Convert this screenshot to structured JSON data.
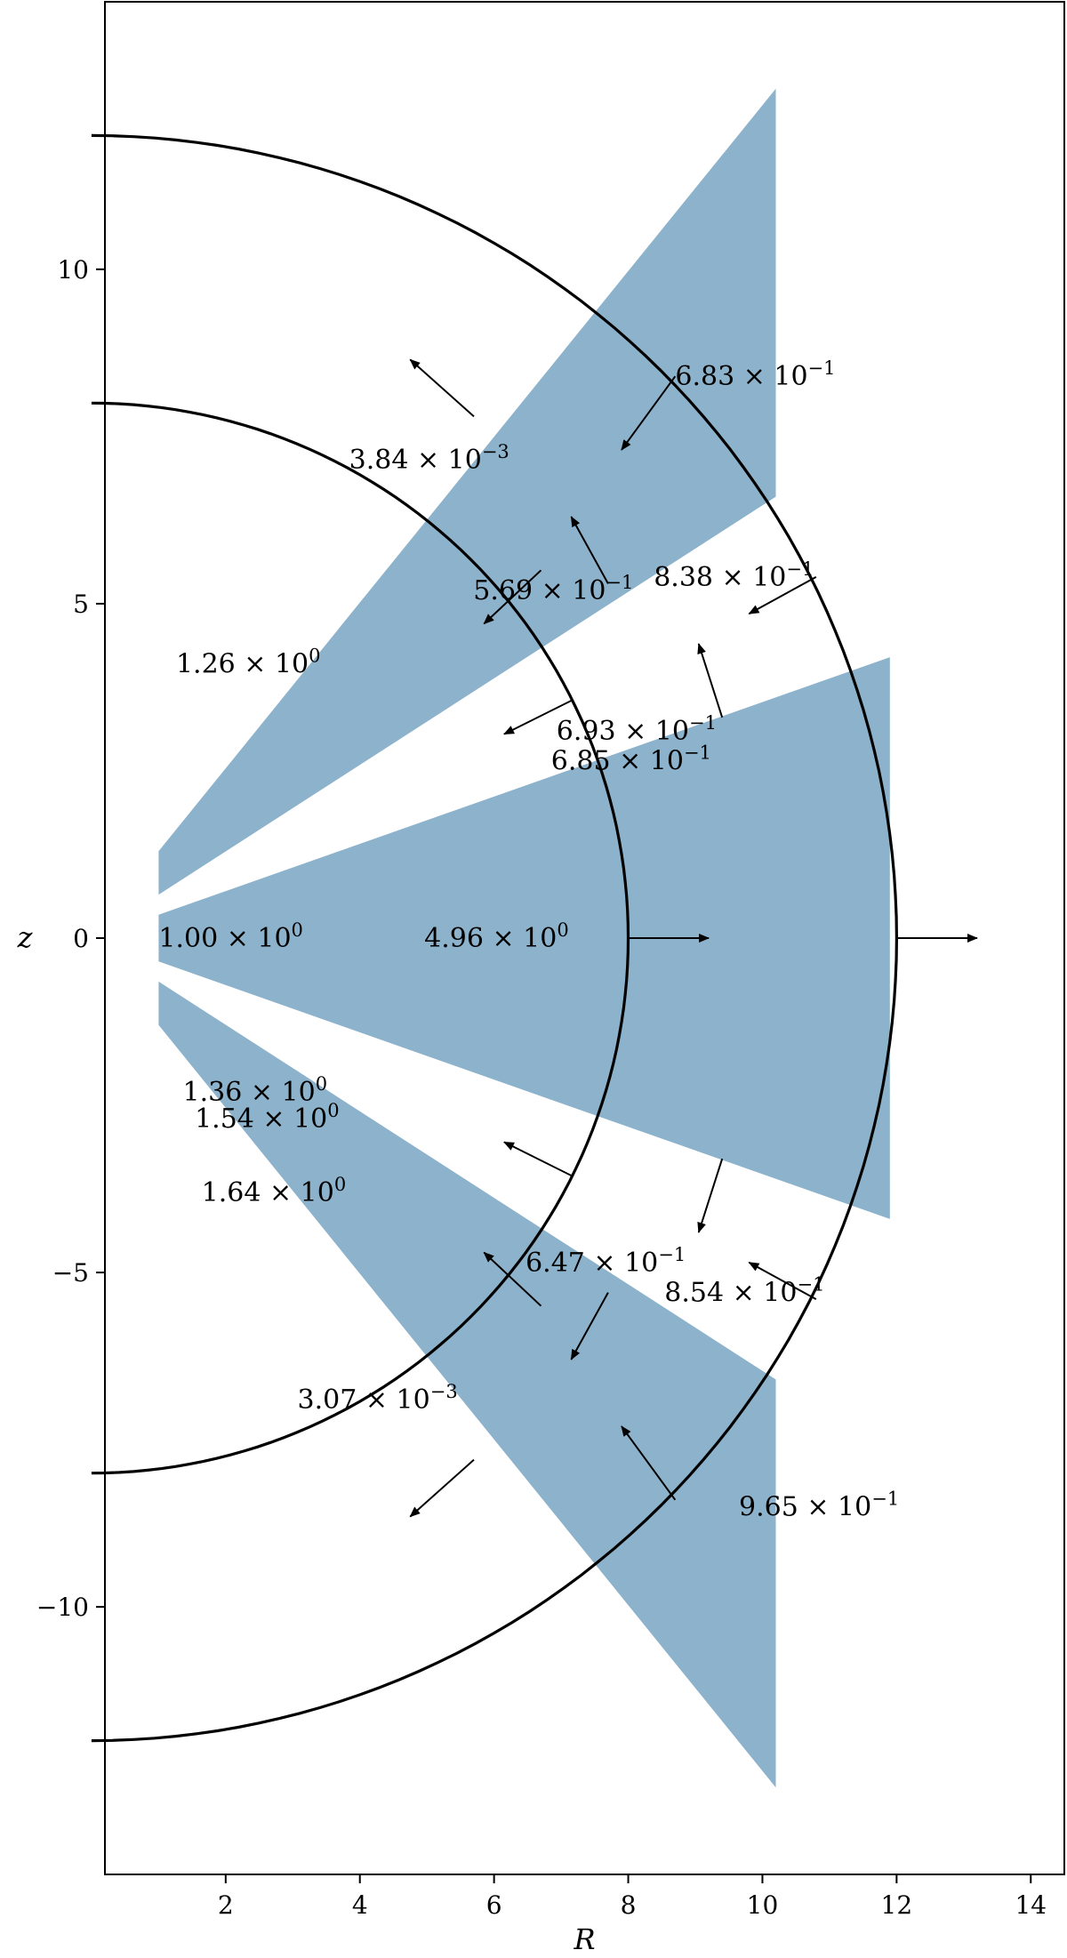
{
  "chart_data": {
    "type": "diagram-plot",
    "xlabel": "R",
    "ylabel": "z",
    "xlim": [
      0.2,
      14.5
    ],
    "ylim": [
      -14,
      14
    ],
    "xticks": [
      2,
      4,
      6,
      8,
      10,
      12,
      14
    ],
    "yticks": [
      -10,
      -5,
      0,
      5,
      10
    ],
    "ytick_labels": [
      "−10",
      "−5",
      "0",
      "5",
      "10"
    ],
    "fill_color": "#8cb2cc",
    "regions": [
      {
        "points": [
          [
            1.0,
            1.3
          ],
          [
            10.2,
            12.7
          ],
          [
            10.2,
            6.6
          ],
          [
            1.0,
            0.65
          ]
        ]
      },
      {
        "points": [
          [
            1.0,
            0.35
          ],
          [
            11.9,
            4.2
          ],
          [
            11.9,
            -4.2
          ],
          [
            1.0,
            -0.35
          ]
        ]
      },
      {
        "points": [
          [
            1.0,
            -0.65
          ],
          [
            10.2,
            -6.6
          ],
          [
            10.2,
            -12.7
          ],
          [
            1.0,
            -1.3
          ]
        ]
      }
    ],
    "arcs": [
      {
        "radius": 8,
        "z_range": [
          -8,
          8
        ]
      },
      {
        "radius": 12,
        "z_range": [
          -12,
          12
        ]
      }
    ],
    "arrows": [
      {
        "from": [
          6.65,
          9.0
        ],
        "to": [
          9.2,
          4.6
        ],
        "label": ""
      },
      {
        "from": [
          5.4,
          9.0
        ],
        "to": [
          6.3,
          5.1
        ],
        "label": ""
      },
      {
        "from": [
          4.65,
          7.3
        ],
        "to": [
          7.9,
          7.9
        ],
        "label": ""
      },
      {
        "from": [
          3.5,
          6.15
        ],
        "to": [
          2.85,
          5.2
        ],
        "label": ""
      }
    ],
    "annotations": [
      {
        "x": 8.7,
        "y": 8.4,
        "text": "6.83 × 10",
        "exp": "−1",
        "ax": 8.7,
        "ay": 8.4,
        "dx": -0.8,
        "dy": -1.1
      },
      {
        "x": 3.84,
        "y": 7.15,
        "text": "3.84 × 10",
        "exp": "−3",
        "ax": 5.7,
        "ay": 7.8,
        "dx": -0.95,
        "dy": 0.85
      },
      {
        "x": 5.69,
        "y": 5.2,
        "text": "5.69 × 10",
        "exp": "−1",
        "ax": 7.7,
        "ay": 5.3,
        "dx": -0.55,
        "dy": 1.0
      },
      {
        "x": 8.38,
        "y": 5.4,
        "text": "8.38 × 10",
        "exp": "−1",
        "ax": 10.8,
        "ay": 5.4,
        "dx": -1.0,
        "dy": -0.55
      },
      {
        "x": 1.26,
        "y": 4.1,
        "text": "1.26 × 10",
        "exp": "0",
        "ax": 6.7,
        "ay": 5.5,
        "dx": -0.85,
        "dy": -0.8
      },
      {
        "x": 6.93,
        "y": 3.1,
        "text": "6.93 × 10",
        "exp": "−1",
        "ax": 9.4,
        "ay": 3.3,
        "dx": -0.35,
        "dy": 1.1
      },
      {
        "x": 6.85,
        "y": 2.65,
        "text": "6.85 × 10",
        "exp": "−1",
        "ax": 7.15,
        "ay": 3.55,
        "dx": -1.0,
        "dy": -0.5
      },
      {
        "x": 1.0,
        "y": 0.0,
        "text": "1.00 × 10",
        "exp": "0",
        "ax": 8.0,
        "ay": 0.0,
        "dx": 1.2,
        "dy": 0.0
      },
      {
        "x": 4.96,
        "y": 0.0,
        "text": "4.96 × 10",
        "exp": "0",
        "ax": 12.0,
        "ay": 0.0,
        "dx": 1.2,
        "dy": 0.0
      },
      {
        "x": 1.36,
        "y": -2.3,
        "text": "1.36 × 10",
        "exp": "0",
        "ax": 7.15,
        "ay": -3.55,
        "dx": -1.0,
        "dy": 0.5
      },
      {
        "x": 1.54,
        "y": -2.7,
        "text": "1.54 × 10",
        "exp": "0",
        "ax": 9.4,
        "ay": -3.3,
        "dx": -0.35,
        "dy": -1.1
      },
      {
        "x": 1.64,
        "y": -3.8,
        "text": "1.64 × 10",
        "exp": "0",
        "ax": 6.7,
        "ay": -5.5,
        "dx": -0.85,
        "dy": 0.8
      },
      {
        "x": 6.47,
        "y": -4.85,
        "text": "6.47 × 10",
        "exp": "−1",
        "ax": 7.7,
        "ay": -5.3,
        "dx": -0.55,
        "dy": -1.0
      },
      {
        "x": 8.54,
        "y": -5.3,
        "text": "8.54 × 10",
        "exp": "−1",
        "ax": 10.8,
        "ay": -5.4,
        "dx": -1.0,
        "dy": 0.55
      },
      {
        "x": 3.07,
        "y": -6.9,
        "text": "3.07 × 10",
        "exp": "−3",
        "ax": 5.7,
        "ay": -7.8,
        "dx": -0.95,
        "dy": -0.85
      },
      {
        "x": 9.65,
        "y": -8.5,
        "text": "9.65 × 10",
        "exp": "−1",
        "ax": 8.7,
        "ay": -8.4,
        "dx": -0.8,
        "dy": 1.1
      }
    ]
  }
}
